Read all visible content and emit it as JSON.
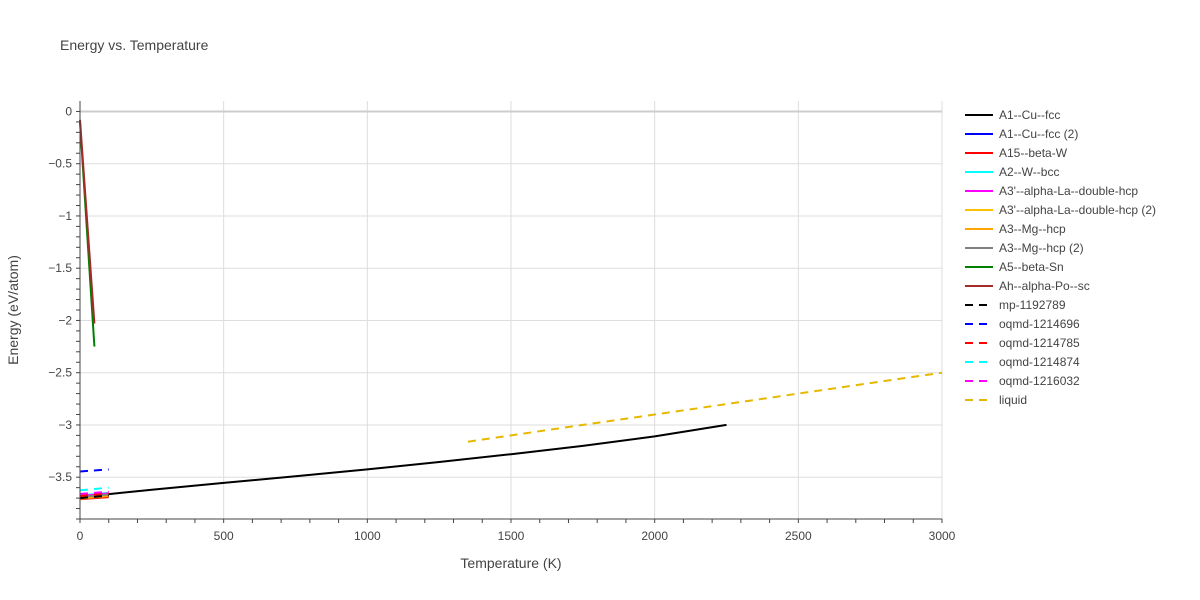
{
  "chart_data": {
    "type": "line",
    "title": "Energy vs. Temperature",
    "xlabel": "Temperature (K)",
    "ylabel": "Energy (eV/atom)",
    "xlim": [
      0,
      3000
    ],
    "ylim": [
      -3.9,
      0.1
    ],
    "grid": true,
    "legend_position": "right",
    "x_ticks": [
      "0",
      "500",
      "1000",
      "1500",
      "2000",
      "2500",
      "3000"
    ],
    "y_ticks": [
      "0",
      "−0.5",
      "−1",
      "−1.5",
      "−2",
      "−2.5",
      "−3",
      "−3.5"
    ],
    "series": [
      {
        "name": "A1--Cu--fcc",
        "color": "#000000",
        "dash": "solid",
        "x": [
          0,
          250,
          500,
          750,
          1000,
          1250,
          1500,
          1750,
          2000,
          2250
        ],
        "y": [
          -3.69,
          -3.62,
          -3.555,
          -3.49,
          -3.425,
          -3.355,
          -3.28,
          -3.2,
          -3.11,
          -3.0
        ]
      },
      {
        "name": "A1--Cu--fcc (2)",
        "color": "#0000ff",
        "dash": "solid",
        "x": [
          0,
          100
        ],
        "y": [
          -3.695,
          -3.665
        ]
      },
      {
        "name": "A15--beta-W",
        "color": "#ff0000",
        "dash": "solid",
        "x": [
          0,
          100
        ],
        "y": [
          -3.71,
          -3.69
        ]
      },
      {
        "name": "A2--W--bcc",
        "color": "#00ffff",
        "dash": "solid",
        "x": [
          0,
          100
        ],
        "y": [
          -3.675,
          -3.65
        ]
      },
      {
        "name": "A3'--alpha-La--double-hcp",
        "color": "#ff00ff",
        "dash": "solid",
        "x": [
          0,
          100
        ],
        "y": [
          -3.68,
          -3.655
        ]
      },
      {
        "name": "A3'--alpha-La--double-hcp (2)",
        "color": "#ffc000",
        "dash": "solid",
        "x": [
          0,
          100
        ],
        "y": [
          -3.7,
          -3.675
        ]
      },
      {
        "name": "A3--Mg--hcp",
        "color": "#ffa500",
        "dash": "solid",
        "x": [
          0,
          100
        ],
        "y": [
          -3.705,
          -3.68
        ]
      },
      {
        "name": "A3--Mg--hcp (2)",
        "color": "#808080",
        "dash": "solid",
        "x": [
          0,
          100
        ],
        "y": [
          -3.69,
          -3.665
        ]
      },
      {
        "name": "A5--beta-Sn",
        "color": "#008000",
        "dash": "solid",
        "x": [
          0,
          50
        ],
        "y": [
          -0.1,
          -2.25
        ]
      },
      {
        "name": "Ah--alpha-Po--sc",
        "color": "#a52a2a",
        "dash": "solid",
        "x": [
          0,
          50
        ],
        "y": [
          -0.08,
          -2.03
        ]
      },
      {
        "name": "mp-1192789",
        "color": "#000000",
        "dash": "dash",
        "x": [
          0,
          100
        ],
        "y": [
          -3.7,
          -3.675
        ]
      },
      {
        "name": "oqmd-1214696",
        "color": "#0000ff",
        "dash": "dash",
        "x": [
          0,
          100
        ],
        "y": [
          -3.445,
          -3.425
        ]
      },
      {
        "name": "oqmd-1214785",
        "color": "#ff0000",
        "dash": "dash",
        "x": [
          0,
          100
        ],
        "y": [
          -3.68,
          -3.655
        ]
      },
      {
        "name": "oqmd-1214874",
        "color": "#00ffff",
        "dash": "dash",
        "x": [
          0,
          100
        ],
        "y": [
          -3.625,
          -3.6
        ]
      },
      {
        "name": "oqmd-1216032",
        "color": "#ff00ff",
        "dash": "dash",
        "x": [
          0,
          100
        ],
        "y": [
          -3.66,
          -3.64
        ]
      },
      {
        "name": "liquid",
        "color": "#e6b800",
        "dash": "dash",
        "x": [
          1350,
          1750,
          2000,
          2250,
          2500,
          2750,
          3000
        ],
        "y": [
          -3.16,
          -3.0,
          -2.9,
          -2.8,
          -2.7,
          -2.6,
          -2.5
        ]
      }
    ]
  }
}
